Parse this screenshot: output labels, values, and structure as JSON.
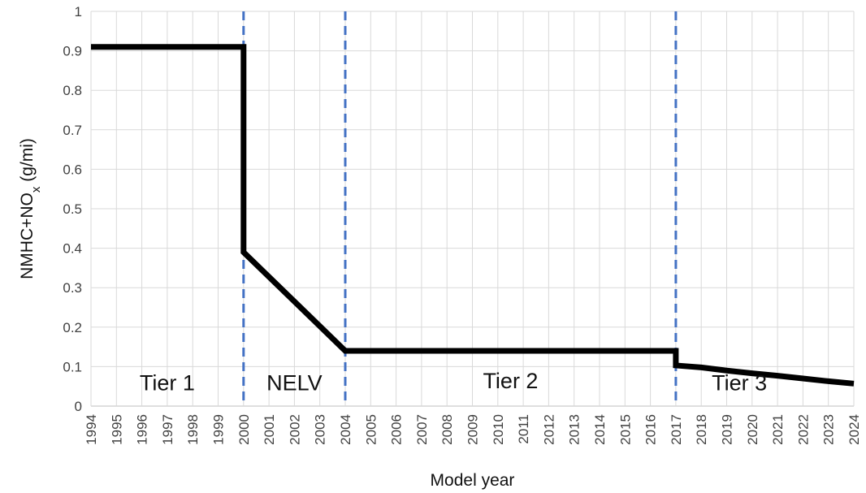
{
  "chart_data": {
    "type": "line",
    "title": "",
    "xlabel": "Model year",
    "ylabel": {
      "main": "NMHC+NO",
      "subscript": "x",
      "suffix": " (g/mi)"
    },
    "xlim": [
      1994,
      2024
    ],
    "ylim": [
      0,
      1
    ],
    "x_ticks": [
      "1994",
      "1995",
      "1996",
      "1997",
      "1998",
      "1999",
      "2000",
      "2001",
      "2002",
      "2003",
      "2004",
      "2005",
      "2006",
      "2007",
      "2008",
      "2009",
      "2010",
      "2011",
      "2012",
      "2013",
      "2014",
      "2015",
      "2016",
      "2017",
      "2018",
      "2019",
      "2020",
      "2021",
      "2022",
      "2023",
      "2024"
    ],
    "y_ticks": [
      "0",
      "0.1",
      "0.2",
      "0.3",
      "0.4",
      "0.5",
      "0.6",
      "0.7",
      "0.8",
      "0.9",
      "1"
    ],
    "grid": true,
    "series": [
      {
        "color": "#000000",
        "points": [
          [
            1994,
            0.91
          ],
          [
            2000,
            0.91
          ],
          [
            2000,
            0.39
          ],
          [
            2004,
            0.14
          ],
          [
            2017,
            0.14
          ],
          [
            2017,
            0.103
          ],
          [
            2018,
            0.098
          ],
          [
            2019,
            0.09
          ],
          [
            2020,
            0.083
          ],
          [
            2021,
            0.077
          ],
          [
            2022,
            0.07
          ],
          [
            2023,
            0.063
          ],
          [
            2024,
            0.057
          ]
        ]
      }
    ],
    "boundaries": {
      "years": [
        2000,
        2004,
        2017
      ],
      "color": "#4472C4",
      "style": "dashed"
    },
    "regions": [
      {
        "label": "Tier 1",
        "x": 1997.0,
        "y": 0.04
      },
      {
        "label": "NELV",
        "x": 2002.0,
        "y": 0.04
      },
      {
        "label": "Tier 2",
        "x": 2010.5,
        "y": 0.045
      },
      {
        "label": "Tier 3",
        "x": 2019.5,
        "y": 0.04
      }
    ]
  }
}
